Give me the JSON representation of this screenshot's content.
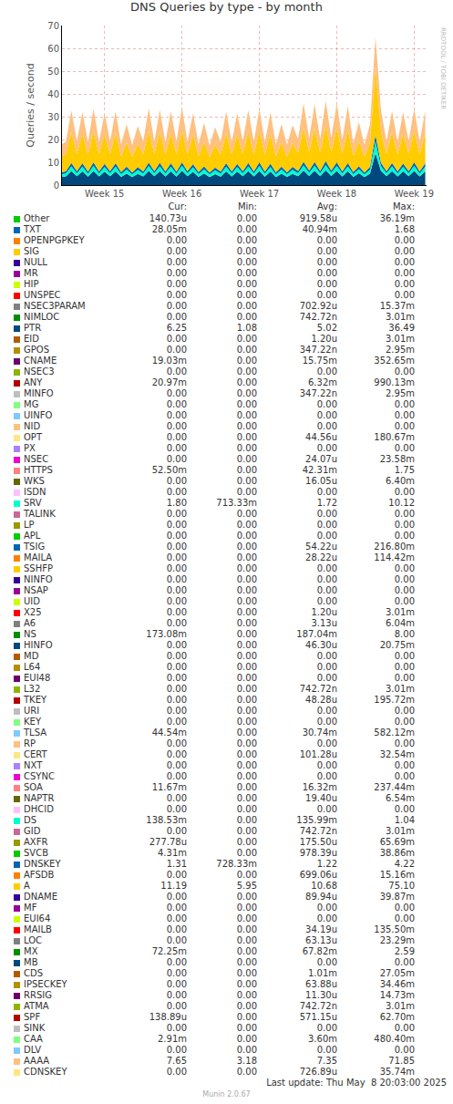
{
  "chart_data": {
    "type": "area",
    "title": "DNS Queries by type - by month",
    "y_label": "Queries / second",
    "annotations": [
      "RRDTOOL / TOBI OETIKER"
    ],
    "stacked": true,
    "grid": true,
    "x": [
      14.95,
      15.0,
      15.071,
      15.143,
      15.214,
      15.286,
      15.357,
      15.429,
      15.5,
      15.571,
      15.643,
      15.714,
      15.786,
      15.857,
      15.929,
      16.0,
      16.071,
      16.143,
      16.214,
      16.286,
      16.357,
      16.429,
      16.5,
      16.571,
      16.643,
      16.714,
      16.786,
      16.857,
      16.929,
      17.0,
      17.071,
      17.143,
      17.214,
      17.286,
      17.357,
      17.429,
      17.5,
      17.571,
      17.643,
      17.714,
      17.786,
      17.857,
      17.929,
      18.0,
      18.071,
      18.143,
      18.214,
      18.286,
      18.357,
      18.429,
      18.5,
      18.571,
      18.643,
      18.714,
      18.786,
      18.857,
      18.929,
      19.0,
      19.071,
      19.143,
      19.214,
      19.286,
      19.357,
      19.429,
      19.5,
      19.571,
      19.643
    ],
    "xlim": [
      14.95,
      19.66
    ],
    "xticks": [
      {
        "value": 15.5,
        "label": "Week 15"
      },
      {
        "value": 16.5,
        "label": "Week 16"
      },
      {
        "value": 17.5,
        "label": "Week 17"
      },
      {
        "value": 18.5,
        "label": "Week 18"
      },
      {
        "value": 19.5,
        "label": "Week 19"
      }
    ],
    "ylim": [
      0,
      70
    ],
    "yticks": [
      0,
      10,
      20,
      30,
      40,
      50,
      60,
      70
    ],
    "series": [
      {
        "name": "PTR",
        "color": "#00487D",
        "values": [
          3.6,
          3.8,
          6.1,
          3.9,
          6.0,
          3.7,
          6.2,
          3.8,
          5.9,
          3.9,
          6.0,
          3.6,
          5.0,
          3.5,
          4.9,
          3.8,
          6.2,
          3.9,
          6.1,
          3.8,
          6.0,
          3.7,
          6.3,
          3.9,
          5.8,
          3.6,
          5.1,
          3.5,
          4.8,
          3.7,
          6.0,
          3.8,
          5.9,
          3.9,
          6.1,
          3.8,
          6.2,
          3.7,
          5.9,
          3.5,
          5.0,
          3.6,
          4.9,
          3.9,
          6.4,
          4.0,
          6.3,
          3.9,
          6.5,
          4.0,
          6.2,
          3.8,
          6.1,
          3.6,
          5.2,
          3.5,
          5.0,
          14.0,
          6.2,
          3.9,
          6.1,
          3.8,
          6.0,
          3.9,
          6.2,
          3.8,
          6.0
        ]
      },
      {
        "name": "SRV",
        "color": "#00FFCC",
        "values": [
          1.2,
          1.3,
          2.1,
          1.3,
          2.1,
          1.3,
          2.2,
          1.3,
          2.0,
          1.3,
          2.1,
          1.2,
          1.8,
          1.2,
          1.7,
          1.3,
          2.2,
          1.3,
          2.1,
          1.3,
          2.1,
          1.3,
          2.2,
          1.3,
          2.0,
          1.2,
          1.8,
          1.2,
          1.7,
          1.3,
          2.1,
          1.3,
          2.0,
          1.3,
          2.1,
          1.3,
          2.2,
          1.3,
          2.0,
          1.2,
          1.8,
          1.2,
          1.8,
          1.3,
          2.2,
          1.4,
          2.2,
          1.3,
          2.3,
          1.4,
          2.2,
          1.3,
          2.1,
          1.2,
          1.8,
          1.2,
          1.7,
          5.0,
          2.1,
          1.3,
          2.1,
          1.3,
          2.0,
          1.3,
          2.2,
          1.3,
          2.1
        ]
      },
      {
        "name": "DNSKEY",
        "color": "#0066B3",
        "values": [
          0.9,
          0.9,
          1.5,
          0.9,
          1.5,
          0.9,
          1.6,
          0.9,
          1.4,
          0.9,
          1.5,
          0.9,
          1.3,
          0.8,
          1.3,
          0.9,
          1.5,
          0.9,
          1.6,
          0.9,
          1.5,
          0.9,
          1.5,
          0.9,
          1.4,
          0.9,
          1.3,
          0.8,
          1.2,
          0.9,
          1.5,
          0.9,
          1.4,
          0.9,
          1.5,
          0.9,
          1.6,
          0.9,
          1.5,
          0.9,
          1.3,
          0.8,
          1.3,
          1.0,
          1.6,
          1.0,
          1.6,
          1.0,
          1.7,
          1.0,
          1.6,
          0.9,
          1.5,
          0.9,
          1.3,
          0.8,
          1.3,
          3.0,
          1.5,
          0.9,
          1.5,
          0.9,
          1.5,
          0.9,
          1.6,
          0.9,
          1.5
        ]
      },
      {
        "name": "A",
        "color": "#FFCC00",
        "values": [
          7.0,
          7.5,
          13.5,
          7.6,
          13.2,
          7.4,
          13.8,
          7.5,
          13.0,
          7.6,
          13.4,
          7.0,
          10.5,
          6.9,
          10.2,
          7.6,
          14.0,
          7.5,
          13.6,
          7.4,
          13.4,
          7.7,
          14.2,
          7.5,
          13.1,
          7.0,
          10.8,
          6.8,
          10.0,
          7.5,
          13.3,
          7.4,
          13.0,
          7.6,
          13.6,
          7.5,
          13.8,
          7.4,
          13.2,
          7.0,
          10.6,
          6.9,
          10.4,
          8.0,
          15.2,
          8.1,
          15.0,
          8.0,
          15.6,
          8.2,
          15.3,
          7.9,
          14.8,
          7.2,
          11.0,
          7.0,
          10.6,
          30.0,
          13.6,
          7.6,
          13.4,
          7.5,
          13.2,
          7.6,
          13.8,
          7.5,
          13.5
        ]
      },
      {
        "name": "AAAA",
        "color": "#FFC080",
        "values": [
          5.2,
          5.5,
          9.5,
          5.6,
          9.3,
          5.5,
          9.7,
          5.4,
          9.2,
          5.6,
          9.4,
          5.2,
          8.0,
          5.1,
          7.8,
          5.6,
          9.8,
          5.5,
          9.6,
          5.4,
          9.5,
          5.6,
          9.9,
          5.5,
          9.2,
          5.2,
          8.2,
          5.0,
          7.7,
          5.5,
          9.4,
          5.4,
          9.2,
          5.6,
          9.6,
          5.5,
          9.7,
          5.4,
          9.3,
          5.2,
          8.1,
          5.1,
          7.9,
          6.0,
          10.5,
          6.1,
          10.3,
          6.0,
          10.8,
          6.1,
          10.6,
          5.9,
          10.2,
          5.3,
          8.3,
          5.2,
          8.0,
          13.0,
          9.6,
          5.5,
          9.4,
          5.5,
          9.3,
          5.6,
          9.7,
          5.5,
          9.5
        ]
      }
    ]
  },
  "legend_table": {
    "columns": [
      "Cur:",
      "Min:",
      "Avg:",
      "Max:"
    ],
    "rows": [
      [
        "Other",
        "#00CC00",
        "140.73u",
        "0.00",
        "919.58u",
        "36.19m"
      ],
      [
        "TXT",
        "#0066B3",
        "28.05m",
        "0.00",
        "40.94m",
        "1.68"
      ],
      [
        "OPENPGPKEY",
        "#FF8000",
        "0.00",
        "0.00",
        "0.00",
        "0.00"
      ],
      [
        "SIG",
        "#FFCC00",
        "0.00",
        "0.00",
        "0.00",
        "0.00"
      ],
      [
        "NULL",
        "#330099",
        "0.00",
        "0.00",
        "0.00",
        "0.00"
      ],
      [
        "MR",
        "#990099",
        "0.00",
        "0.00",
        "0.00",
        "0.00"
      ],
      [
        "HIP",
        "#CCFF00",
        "0.00",
        "0.00",
        "0.00",
        "0.00"
      ],
      [
        "UNSPEC",
        "#FF0000",
        "0.00",
        "0.00",
        "0.00",
        "0.00"
      ],
      [
        "NSEC3PARAM",
        "#808080",
        "0.00",
        "0.00",
        "702.92u",
        "15.37m"
      ],
      [
        "NIMLOC",
        "#008F00",
        "0.00",
        "0.00",
        "742.72n",
        "3.01m"
      ],
      [
        "PTR",
        "#00487D",
        "6.25",
        "1.08",
        "5.02",
        "36.49"
      ],
      [
        "EID",
        "#B35A00",
        "0.00",
        "0.00",
        "1.20u",
        "3.01m"
      ],
      [
        "GPOS",
        "#B38F00",
        "0.00",
        "0.00",
        "347.22n",
        "2.95m"
      ],
      [
        "CNAME",
        "#6B006B",
        "19.03m",
        "0.00",
        "15.75m",
        "352.65m"
      ],
      [
        "NSEC3",
        "#8FB300",
        "0.00",
        "0.00",
        "0.00",
        "0.00"
      ],
      [
        "ANY",
        "#B30000",
        "20.97m",
        "0.00",
        "6.32m",
        "990.13m"
      ],
      [
        "MINFO",
        "#BEBEBE",
        "0.00",
        "0.00",
        "347.22n",
        "2.95m"
      ],
      [
        "MG",
        "#80FF80",
        "0.00",
        "0.00",
        "0.00",
        "0.00"
      ],
      [
        "UINFO",
        "#80C9FF",
        "0.00",
        "0.00",
        "0.00",
        "0.00"
      ],
      [
        "NID",
        "#FFC080",
        "0.00",
        "0.00",
        "0.00",
        "0.00"
      ],
      [
        "OPT",
        "#FFE680",
        "0.00",
        "0.00",
        "44.56u",
        "180.67m"
      ],
      [
        "PX",
        "#AA80FF",
        "0.00",
        "0.00",
        "0.00",
        "0.00"
      ],
      [
        "NSEC",
        "#EE00CC",
        "0.00",
        "0.00",
        "24.07u",
        "23.58m"
      ],
      [
        "HTTPS",
        "#FF8080",
        "52.50m",
        "0.00",
        "42.31m",
        "1.75"
      ],
      [
        "WKS",
        "#666600",
        "0.00",
        "0.00",
        "16.05u",
        "6.40m"
      ],
      [
        "ISDN",
        "#FFBFFF",
        "0.00",
        "0.00",
        "0.00",
        "0.00"
      ],
      [
        "SRV",
        "#00FFCC",
        "1.80",
        "713.33m",
        "1.72",
        "10.12"
      ],
      [
        "TALINK",
        "#CC6699",
        "0.00",
        "0.00",
        "0.00",
        "0.00"
      ],
      [
        "LP",
        "#999900",
        "0.00",
        "0.00",
        "0.00",
        "0.00"
      ],
      [
        "APL",
        "#00CC00",
        "0.00",
        "0.00",
        "0.00",
        "0.00"
      ],
      [
        "TSIG",
        "#0066B3",
        "0.00",
        "0.00",
        "54.22u",
        "216.80m"
      ],
      [
        "MAILA",
        "#FF8000",
        "0.00",
        "0.00",
        "28.22u",
        "114.42m"
      ],
      [
        "SSHFP",
        "#FFCC00",
        "0.00",
        "0.00",
        "0.00",
        "0.00"
      ],
      [
        "NINFO",
        "#330099",
        "0.00",
        "0.00",
        "0.00",
        "0.00"
      ],
      [
        "NSAP",
        "#990099",
        "0.00",
        "0.00",
        "0.00",
        "0.00"
      ],
      [
        "UID",
        "#CCFF00",
        "0.00",
        "0.00",
        "0.00",
        "0.00"
      ],
      [
        "X25",
        "#FF0000",
        "0.00",
        "0.00",
        "1.20u",
        "3.01m"
      ],
      [
        "A6",
        "#808080",
        "0.00",
        "0.00",
        "3.13u",
        "6.04m"
      ],
      [
        "NS",
        "#008F00",
        "173.08m",
        "0.00",
        "187.04m",
        "8.00"
      ],
      [
        "HINFO",
        "#00487D",
        "0.00",
        "0.00",
        "46.30u",
        "20.75m"
      ],
      [
        "MD",
        "#B35A00",
        "0.00",
        "0.00",
        "0.00",
        "0.00"
      ],
      [
        "L64",
        "#B38F00",
        "0.00",
        "0.00",
        "0.00",
        "0.00"
      ],
      [
        "EUI48",
        "#6B006B",
        "0.00",
        "0.00",
        "0.00",
        "0.00"
      ],
      [
        "L32",
        "#8FB300",
        "0.00",
        "0.00",
        "742.72n",
        "3.01m"
      ],
      [
        "TKEY",
        "#B30000",
        "0.00",
        "0.00",
        "48.28u",
        "195.72m"
      ],
      [
        "URI",
        "#BEBEBE",
        "0.00",
        "0.00",
        "0.00",
        "0.00"
      ],
      [
        "KEY",
        "#80FF80",
        "0.00",
        "0.00",
        "0.00",
        "0.00"
      ],
      [
        "TLSA",
        "#80C9FF",
        "44.54m",
        "0.00",
        "30.74m",
        "582.12m"
      ],
      [
        "RP",
        "#FFC080",
        "0.00",
        "0.00",
        "0.00",
        "0.00"
      ],
      [
        "CERT",
        "#FFE680",
        "0.00",
        "0.00",
        "101.28u",
        "32.54m"
      ],
      [
        "NXT",
        "#AA80FF",
        "0.00",
        "0.00",
        "0.00",
        "0.00"
      ],
      [
        "CSYNC",
        "#EE00CC",
        "0.00",
        "0.00",
        "0.00",
        "0.00"
      ],
      [
        "SOA",
        "#FF8080",
        "11.67m",
        "0.00",
        "16.32m",
        "237.44m"
      ],
      [
        "NAPTR",
        "#666600",
        "0.00",
        "0.00",
        "19.40u",
        "6.54m"
      ],
      [
        "DHCID",
        "#FFBFFF",
        "0.00",
        "0.00",
        "0.00",
        "0.00"
      ],
      [
        "DS",
        "#00FFCC",
        "138.53m",
        "0.00",
        "135.99m",
        "1.04"
      ],
      [
        "GID",
        "#CC6699",
        "0.00",
        "0.00",
        "742.72n",
        "3.01m"
      ],
      [
        "AXFR",
        "#999900",
        "277.78u",
        "0.00",
        "175.50u",
        "65.69m"
      ],
      [
        "SVCB",
        "#00CC00",
        "4.31m",
        "0.00",
        "978.39u",
        "38.86m"
      ],
      [
        "DNSKEY",
        "#0066B3",
        "1.31",
        "728.33m",
        "1.22",
        "4.22"
      ],
      [
        "AFSDB",
        "#FF8000",
        "0.00",
        "0.00",
        "699.06u",
        "15.16m"
      ],
      [
        "A",
        "#FFCC00",
        "11.19",
        "5.95",
        "10.68",
        "75.10"
      ],
      [
        "DNAME",
        "#330099",
        "0.00",
        "0.00",
        "89.94u",
        "39.87m"
      ],
      [
        "MF",
        "#990099",
        "0.00",
        "0.00",
        "0.00",
        "0.00"
      ],
      [
        "EUI64",
        "#CCFF00",
        "0.00",
        "0.00",
        "0.00",
        "0.00"
      ],
      [
        "MAILB",
        "#FF0000",
        "0.00",
        "0.00",
        "34.19u",
        "135.50m"
      ],
      [
        "LOC",
        "#808080",
        "0.00",
        "0.00",
        "63.13u",
        "23.29m"
      ],
      [
        "MX",
        "#008F00",
        "72.25m",
        "0.00",
        "67.82m",
        "2.59"
      ],
      [
        "MB",
        "#00487D",
        "0.00",
        "0.00",
        "0.00",
        "0.00"
      ],
      [
        "CDS",
        "#B35A00",
        "0.00",
        "0.00",
        "1.01m",
        "27.05m"
      ],
      [
        "IPSECKEY",
        "#B38F00",
        "0.00",
        "0.00",
        "63.88u",
        "34.46m"
      ],
      [
        "RRSIG",
        "#6B006B",
        "0.00",
        "0.00",
        "11.30u",
        "14.73m"
      ],
      [
        "ATMA",
        "#8FB300",
        "0.00",
        "0.00",
        "742.72n",
        "3.01m"
      ],
      [
        "SPF",
        "#B30000",
        "138.89u",
        "0.00",
        "571.15u",
        "62.70m"
      ],
      [
        "SINK",
        "#BEBEBE",
        "0.00",
        "0.00",
        "0.00",
        "0.00"
      ],
      [
        "CAA",
        "#80FF80",
        "2.91m",
        "0.00",
        "3.60m",
        "480.40m"
      ],
      [
        "DLV",
        "#80C9FF",
        "0.00",
        "0.00",
        "0.00",
        "0.00"
      ],
      [
        "AAAA",
        "#FFC080",
        "7.65",
        "3.18",
        "7.35",
        "71.85"
      ],
      [
        "CDNSKEY",
        "#FFE680",
        "0.00",
        "0.00",
        "726.89u",
        "35.74m"
      ]
    ]
  },
  "footer": {
    "last_update": "Last update: Thu May  8 20:03:00 2025",
    "generator": "Munin 2.0.67"
  }
}
